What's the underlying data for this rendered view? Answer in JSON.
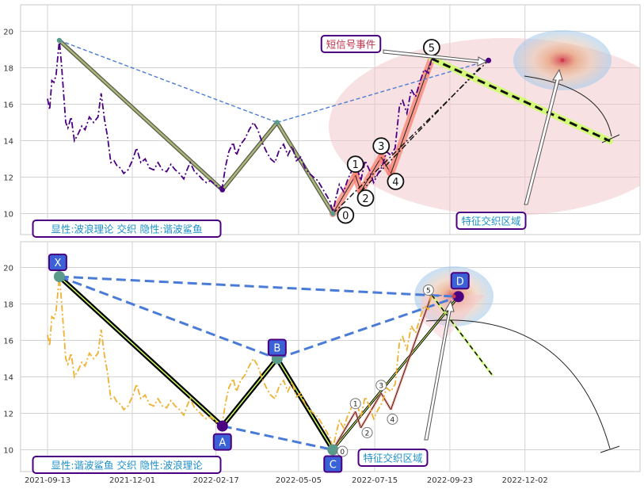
{
  "colors": {
    "top_series": "#4b0082",
    "bottom_series": "#f0b030",
    "wave": "#fa8072",
    "harmonic": "#1f1f1f",
    "dashed_blue": "#4a7bd6",
    "projection": "#ccff66",
    "label_border": "#4b0082",
    "label_text": "#1e90c8",
    "signal_text": "#c0304a",
    "pattern_box": "#3a62d6"
  },
  "chart_data": [
    {
      "type": "line",
      "panel": "top",
      "ylim": [
        9,
        21.2
      ],
      "yticks": [
        10,
        12,
        14,
        16,
        18,
        20
      ],
      "grid": true,
      "legend_box": "显性:波浪理论 交织 隐性:谐波鲨鱼",
      "signal_label": "短信号事件",
      "zone_label": "特征交织区域",
      "series": [
        {
          "values": [
            [
              "2021-09-13",
              16.3
            ],
            [
              "2021-09-15",
              15.7
            ],
            [
              "2021-09-17",
              17.3
            ],
            [
              "2021-09-19",
              17.2
            ],
            [
              "2021-09-21",
              17.6
            ],
            [
              "2021-09-24",
              19.5
            ],
            [
              "2021-09-26",
              18.2
            ],
            [
              "2021-09-28",
              16.6
            ],
            [
              "2021-09-30",
              15.0
            ],
            [
              "2021-10-02",
              14.7
            ],
            [
              "2021-10-05",
              15.3
            ],
            [
              "2021-10-08",
              14.0
            ],
            [
              "2021-10-11",
              14.3
            ],
            [
              "2021-10-15",
              14.8
            ],
            [
              "2021-10-18",
              14.6
            ],
            [
              "2021-10-22",
              15.3
            ],
            [
              "2021-10-26",
              15.0
            ],
            [
              "2021-10-30",
              15.3
            ],
            [
              "2021-11-02",
              16.6
            ],
            [
              "2021-11-05",
              15.2
            ],
            [
              "2021-11-08",
              14.2
            ],
            [
              "2021-11-11",
              12.8
            ],
            [
              "2021-11-14",
              12.9
            ],
            [
              "2021-11-17",
              12.6
            ],
            [
              "2021-11-20",
              12.5
            ],
            [
              "2021-11-23",
              12.2
            ],
            [
              "2021-11-27",
              12.4
            ],
            [
              "2021-12-01",
              12.9
            ],
            [
              "2021-12-05",
              13.6
            ],
            [
              "2021-12-09",
              12.8
            ],
            [
              "2021-12-13",
              13.0
            ],
            [
              "2021-12-17",
              12.5
            ],
            [
              "2021-12-21",
              12.4
            ],
            [
              "2021-12-25",
              12.8
            ],
            [
              "2021-12-29",
              12.4
            ],
            [
              "2022-01-02",
              12.3
            ],
            [
              "2022-01-06",
              12.7
            ],
            [
              "2022-01-10",
              12.4
            ],
            [
              "2022-01-14",
              12.2
            ],
            [
              "2022-01-18",
              11.9
            ],
            [
              "2022-01-21",
              12.4
            ],
            [
              "2022-01-24",
              12.8
            ],
            [
              "2022-01-28",
              12.3
            ],
            [
              "2022-02-01",
              12.1
            ],
            [
              "2022-02-04",
              11.9
            ],
            [
              "2022-02-08",
              11.7
            ],
            [
              "2022-02-12",
              11.8
            ],
            [
              "2022-02-16",
              11.6
            ],
            [
              "2022-02-20",
              11.4
            ],
            [
              "2022-02-23",
              11.5
            ],
            [
              "2022-02-26",
              12.6
            ],
            [
              "2022-03-01",
              13.4
            ],
            [
              "2022-03-05",
              13.9
            ],
            [
              "2022-03-08",
              13.2
            ],
            [
              "2022-03-12",
              13.8
            ],
            [
              "2022-03-16",
              14.1
            ],
            [
              "2022-03-20",
              14.6
            ],
            [
              "2022-03-24",
              15.0
            ],
            [
              "2022-03-28",
              14.6
            ],
            [
              "2022-04-01",
              13.9
            ],
            [
              "2022-04-05",
              13.4
            ],
            [
              "2022-04-09",
              13.0
            ],
            [
              "2022-04-13",
              12.8
            ],
            [
              "2022-04-17",
              13.5
            ],
            [
              "2022-04-21",
              13.8
            ],
            [
              "2022-04-25",
              13.2
            ],
            [
              "2022-04-29",
              13.7
            ],
            [
              "2022-05-03",
              12.9
            ],
            [
              "2022-05-07",
              13.1
            ],
            [
              "2022-05-11",
              12.5
            ],
            [
              "2022-05-15",
              12.2
            ],
            [
              "2022-05-19",
              12.0
            ],
            [
              "2022-05-23",
              11.8
            ],
            [
              "2022-05-27",
              11.4
            ],
            [
              "2022-05-31",
              11.0
            ],
            [
              "2022-06-03",
              10.7
            ],
            [
              "2022-06-06",
              10.1
            ],
            [
              "2022-06-09",
              10.9
            ],
            [
              "2022-06-12",
              11.6
            ],
            [
              "2022-06-16",
              11.2
            ],
            [
              "2022-06-20",
              11.9
            ],
            [
              "2022-06-24",
              12.4
            ],
            [
              "2022-06-28",
              12.6
            ],
            [
              "2022-07-02",
              11.8
            ],
            [
              "2022-07-06",
              12.9
            ],
            [
              "2022-07-10",
              12.4
            ],
            [
              "2022-07-14",
              11.7
            ],
            [
              "2022-07-18",
              12.2
            ],
            [
              "2022-07-22",
              12.6
            ],
            [
              "2022-07-26",
              13.4
            ],
            [
              "2022-07-30",
              13.2
            ],
            [
              "2022-08-03",
              13.6
            ],
            [
              "2022-08-07",
              15.9
            ],
            [
              "2022-08-10",
              16.2
            ],
            [
              "2022-08-14",
              15.5
            ],
            [
              "2022-08-18",
              16.8
            ],
            [
              "2022-08-22",
              16.4
            ],
            [
              "2022-08-26",
              17.2
            ],
            [
              "2022-08-30",
              17.9
            ],
            [
              "2022-09-03",
              17.7
            ],
            [
              "2022-09-06",
              18.5
            ]
          ]
        }
      ],
      "wave_points": [
        {
          "label": "0",
          "x": "2022-06-06",
          "y": 10.0
        },
        {
          "label": "1",
          "x": "2022-06-27",
          "y": 12.1
        },
        {
          "label": "2",
          "x": "2022-07-02",
          "y": 11.2
        },
        {
          "label": "3",
          "x": "2022-07-21",
          "y": 13.1
        },
        {
          "label": "4",
          "x": "2022-07-30",
          "y": 12.2
        },
        {
          "label": "5",
          "x": "2022-09-06",
          "y": 18.5
        }
      ],
      "harmonic_points": [
        {
          "x": "2021-09-24",
          "y": 19.5
        },
        {
          "x": "2022-02-23",
          "y": 11.3
        },
        {
          "x": "2022-04-15",
          "y": 15.0
        },
        {
          "x": "2022-06-06",
          "y": 10.0
        },
        {
          "x": "2022-09-06",
          "y": 18.5
        }
      ],
      "target_point": {
        "x": "2022-10-29",
        "y": 18.4
      }
    },
    {
      "type": "line",
      "panel": "bottom",
      "ylim": [
        9,
        21.2
      ],
      "yticks": [
        10,
        12,
        14,
        16,
        18,
        20
      ],
      "grid": true,
      "xticks": [
        "2021-09-13",
        "2021-12-01",
        "2022-02-17",
        "2022-05-05",
        "2022-07-15",
        "2022-09-23",
        "2022-12-02"
      ],
      "legend_box": "显性:谐波鲨鱼 交织 隐性:波浪理论",
      "zone_label": "特征交织区域",
      "series": [
        {
          "values": [
            [
              "2021-09-13",
              16.3
            ],
            [
              "2021-09-15",
              15.7
            ],
            [
              "2021-09-17",
              17.3
            ],
            [
              "2021-09-19",
              17.2
            ],
            [
              "2021-09-21",
              17.6
            ],
            [
              "2021-09-24",
              19.5
            ],
            [
              "2021-09-26",
              18.2
            ],
            [
              "2021-09-28",
              16.6
            ],
            [
              "2021-09-30",
              15.0
            ],
            [
              "2021-10-02",
              14.7
            ],
            [
              "2021-10-05",
              15.3
            ],
            [
              "2021-10-08",
              14.0
            ],
            [
              "2021-10-11",
              14.3
            ],
            [
              "2021-10-15",
              14.8
            ],
            [
              "2021-10-18",
              14.6
            ],
            [
              "2021-10-22",
              15.3
            ],
            [
              "2021-10-26",
              15.0
            ],
            [
              "2021-10-30",
              15.3
            ],
            [
              "2021-11-02",
              16.6
            ],
            [
              "2021-11-05",
              15.2
            ],
            [
              "2021-11-08",
              14.2
            ],
            [
              "2021-11-11",
              12.8
            ],
            [
              "2021-11-14",
              12.9
            ],
            [
              "2021-11-17",
              12.6
            ],
            [
              "2021-11-20",
              12.5
            ],
            [
              "2021-11-23",
              12.2
            ],
            [
              "2021-11-27",
              12.4
            ],
            [
              "2021-12-01",
              12.9
            ],
            [
              "2021-12-05",
              13.6
            ],
            [
              "2021-12-09",
              12.8
            ],
            [
              "2021-12-13",
              13.0
            ],
            [
              "2021-12-17",
              12.5
            ],
            [
              "2021-12-21",
              12.4
            ],
            [
              "2021-12-25",
              12.8
            ],
            [
              "2021-12-29",
              12.4
            ],
            [
              "2022-01-02",
              12.3
            ],
            [
              "2022-01-06",
              12.7
            ],
            [
              "2022-01-10",
              12.4
            ],
            [
              "2022-01-14",
              12.2
            ],
            [
              "2022-01-18",
              11.9
            ],
            [
              "2022-01-21",
              12.4
            ],
            [
              "2022-01-24",
              12.8
            ],
            [
              "2022-01-28",
              12.3
            ],
            [
              "2022-02-01",
              12.1
            ],
            [
              "2022-02-04",
              11.9
            ],
            [
              "2022-02-08",
              11.7
            ],
            [
              "2022-02-12",
              11.8
            ],
            [
              "2022-02-16",
              11.6
            ],
            [
              "2022-02-20",
              11.4
            ],
            [
              "2022-02-23",
              11.5
            ],
            [
              "2022-02-26",
              12.6
            ],
            [
              "2022-03-01",
              13.4
            ],
            [
              "2022-03-05",
              13.9
            ],
            [
              "2022-03-08",
              13.2
            ],
            [
              "2022-03-12",
              13.8
            ],
            [
              "2022-03-16",
              14.1
            ],
            [
              "2022-03-20",
              14.6
            ],
            [
              "2022-03-24",
              15.0
            ],
            [
              "2022-03-28",
              14.6
            ],
            [
              "2022-04-01",
              13.9
            ],
            [
              "2022-04-05",
              13.4
            ],
            [
              "2022-04-09",
              13.0
            ],
            [
              "2022-04-13",
              12.8
            ],
            [
              "2022-04-17",
              13.5
            ],
            [
              "2022-04-21",
              13.8
            ],
            [
              "2022-04-25",
              13.2
            ],
            [
              "2022-04-29",
              13.7
            ],
            [
              "2022-05-03",
              12.9
            ],
            [
              "2022-05-07",
              13.1
            ],
            [
              "2022-05-11",
              12.5
            ],
            [
              "2022-05-15",
              12.2
            ],
            [
              "2022-05-19",
              12.0
            ],
            [
              "2022-05-23",
              11.8
            ],
            [
              "2022-05-27",
              11.4
            ],
            [
              "2022-05-31",
              11.0
            ],
            [
              "2022-06-03",
              10.7
            ],
            [
              "2022-06-06",
              10.1
            ],
            [
              "2022-06-09",
              10.9
            ],
            [
              "2022-06-12",
              11.6
            ],
            [
              "2022-06-16",
              11.2
            ],
            [
              "2022-06-20",
              11.9
            ],
            [
              "2022-06-24",
              12.4
            ],
            [
              "2022-06-28",
              12.6
            ],
            [
              "2022-07-02",
              11.8
            ],
            [
              "2022-07-06",
              12.9
            ],
            [
              "2022-07-10",
              12.4
            ],
            [
              "2022-07-14",
              11.7
            ],
            [
              "2022-07-18",
              12.2
            ],
            [
              "2022-07-22",
              12.6
            ],
            [
              "2022-07-26",
              13.4
            ],
            [
              "2022-07-30",
              13.2
            ],
            [
              "2022-08-03",
              13.6
            ],
            [
              "2022-08-07",
              15.9
            ],
            [
              "2022-08-10",
              16.2
            ],
            [
              "2022-08-14",
              15.5
            ],
            [
              "2022-08-18",
              16.8
            ],
            [
              "2022-08-22",
              16.4
            ],
            [
              "2022-08-26",
              17.2
            ],
            [
              "2022-08-30",
              17.9
            ],
            [
              "2022-09-03",
              17.7
            ],
            [
              "2022-09-06",
              18.5
            ]
          ]
        }
      ],
      "pattern_points": [
        {
          "label": "X",
          "x": "2021-09-24",
          "y": 19.5
        },
        {
          "label": "A",
          "x": "2022-02-23",
          "y": 11.3
        },
        {
          "label": "B",
          "x": "2022-04-15",
          "y": 15.0
        },
        {
          "label": "C",
          "x": "2022-06-06",
          "y": 10.0
        },
        {
          "label": "D",
          "x": "2022-10-01",
          "y": 18.4
        }
      ],
      "wave_points": [
        {
          "label": "0",
          "x": "2022-06-06",
          "y": 10.0
        },
        {
          "label": "1",
          "x": "2022-06-27",
          "y": 12.1
        },
        {
          "label": "2",
          "x": "2022-07-02",
          "y": 11.2
        },
        {
          "label": "3",
          "x": "2022-07-21",
          "y": 13.1
        },
        {
          "label": "4",
          "x": "2022-07-30",
          "y": 12.2
        },
        {
          "label": "5",
          "x": "2022-09-06",
          "y": 18.5
        }
      ]
    }
  ]
}
